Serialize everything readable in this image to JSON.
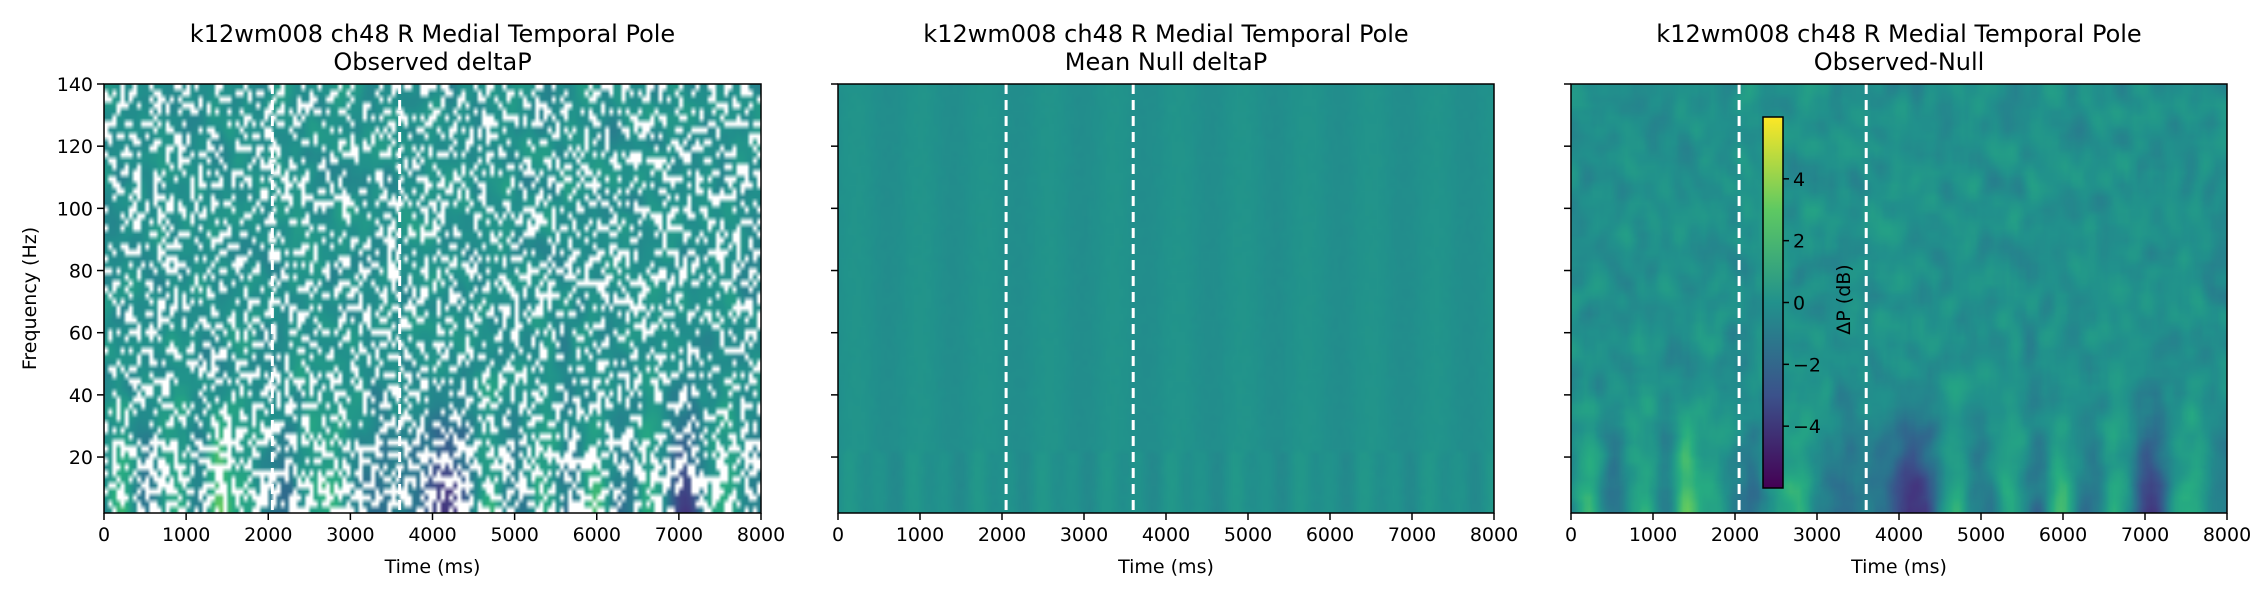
{
  "chart_data": [
    {
      "type": "heatmap",
      "title_line1": "k12wm008 ch48 R Medial Temporal Pole",
      "title_line2": "Observed deltaP",
      "xlabel": "Time (ms)",
      "ylabel": "Frequency (Hz)",
      "xlim": [
        0,
        8000
      ],
      "ylim": [
        2,
        140
      ],
      "xticks": [
        0,
        1000,
        2000,
        3000,
        4000,
        5000,
        6000,
        7000,
        8000
      ],
      "yticks": [
        20,
        40,
        60,
        80,
        100,
        120,
        140
      ],
      "event_lines_ms": [
        2050,
        3600
      ],
      "masked": true
    },
    {
      "type": "heatmap",
      "title_line1": "k12wm008 ch48 R Medial Temporal Pole",
      "title_line2": "Mean Null deltaP",
      "xlabel": "Time (ms)",
      "ylabel": "",
      "xlim": [
        0,
        8000
      ],
      "ylim": [
        2,
        140
      ],
      "xticks": [
        0,
        1000,
        2000,
        3000,
        4000,
        5000,
        6000,
        7000,
        8000
      ],
      "yticks": [
        20,
        40,
        60,
        80,
        100,
        120,
        140
      ],
      "event_lines_ms": [
        2050,
        3600
      ],
      "masked": false
    },
    {
      "type": "heatmap",
      "title_line1": "k12wm008 ch48 R Medial Temporal Pole",
      "title_line2": "Observed-Null",
      "xlabel": "Time (ms)",
      "ylabel": "",
      "xlim": [
        0,
        8000
      ],
      "ylim": [
        2,
        140
      ],
      "xticks": [
        0,
        1000,
        2000,
        3000,
        4000,
        5000,
        6000,
        7000,
        8000
      ],
      "yticks": [
        20,
        40,
        60,
        80,
        100,
        120,
        140
      ],
      "event_lines_ms": [
        2050,
        3600
      ],
      "masked": false,
      "colorbar": {
        "label": "ΔP (dB)",
        "range": [
          -6,
          6
        ],
        "ticks": [
          4,
          2,
          0,
          -2,
          -4
        ],
        "tick_labels": [
          "4",
          "2",
          "0",
          "−2",
          "−4"
        ],
        "colormap": "viridis"
      }
    }
  ]
}
